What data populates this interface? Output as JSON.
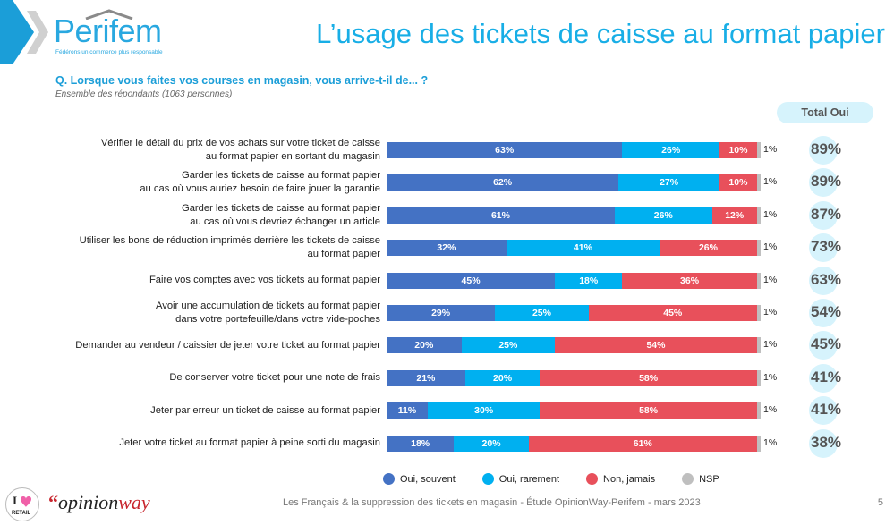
{
  "header": {
    "logo_text": "Perifem",
    "logo_tagline": "Fédérons un commerce plus responsable",
    "title": "L’usage des tickets de caisse au format papier"
  },
  "question": "Q. Lorsque vous faites vos courses en magasin, vous arrive-t-il de... ?",
  "base": "Ensemble des répondants (1063 personnes)",
  "total_header": "Total Oui",
  "colors": {
    "oui_souvent": "#4472c4",
    "oui_rarement": "#00b0f0",
    "non_jamais": "#e8505b",
    "nsp": "#bfbfbf",
    "total_bg": "#d6f3fc",
    "accent": "#18aee6"
  },
  "chart_data": {
    "type": "bar",
    "orientation": "horizontal-stacked-100",
    "title": "L’usage des tickets de caisse au format papier",
    "categories": [
      "Vérifier le détail du prix de vos achats sur votre ticket de caisse au format papier en sortant du magasin",
      "Garder les tickets de caisse au format papier au cas où vous auriez besoin de faire jouer la garantie",
      "Garder les tickets de caisse au format papier au cas où vous devriez échanger un article",
      "Utiliser les bons de réduction imprimés derrière les tickets de caisse au format papier",
      "Faire vos comptes avec vos tickets au format papier",
      "Avoir une accumulation de tickets au format papier dans votre portefeuille/dans votre vide-poches",
      "Demander au vendeur / caissier de jeter votre ticket au format papier",
      "De conserver votre ticket pour une note de frais",
      "Jeter par erreur un ticket de caisse au format papier",
      "Jeter votre ticket au format papier à peine sorti du magasin"
    ],
    "category_lines": [
      [
        "Vérifier le détail du prix de vos achats sur votre ticket de caisse",
        "au format papier en sortant du magasin"
      ],
      [
        "Garder les tickets de caisse au format papier",
        "au cas où vous auriez besoin de faire jouer la garantie"
      ],
      [
        "Garder les tickets de caisse au format papier",
        "au cas où vous devriez échanger un article"
      ],
      [
        "Utiliser les bons de réduction imprimés derrière les tickets de caisse",
        "au format papier"
      ],
      [
        "Faire vos comptes avec vos tickets au format papier"
      ],
      [
        "Avoir une accumulation de tickets au format papier",
        "dans votre portefeuille/dans votre vide-poches"
      ],
      [
        "Demander au vendeur / caissier de jeter votre ticket au format papier"
      ],
      [
        "De conserver votre ticket pour une note de frais"
      ],
      [
        "Jeter par erreur un ticket de caisse au format papier"
      ],
      [
        "Jeter votre ticket au format papier à peine sorti du magasin"
      ]
    ],
    "series": [
      {
        "name": "Oui, souvent",
        "key": "oui_souvent",
        "values": [
          63,
          62,
          61,
          32,
          45,
          29,
          20,
          21,
          11,
          18
        ]
      },
      {
        "name": "Oui, rarement",
        "key": "oui_rarement",
        "values": [
          26,
          27,
          26,
          41,
          18,
          25,
          25,
          20,
          30,
          20
        ]
      },
      {
        "name": "Non, jamais",
        "key": "non_jamais",
        "values": [
          10,
          10,
          12,
          26,
          36,
          45,
          54,
          58,
          58,
          61
        ]
      },
      {
        "name": "NSP",
        "key": "nsp",
        "values": [
          1,
          1,
          1,
          1,
          1,
          1,
          1,
          1,
          1,
          1
        ]
      }
    ],
    "total_oui": [
      89,
      89,
      87,
      73,
      63,
      54,
      45,
      41,
      41,
      38
    ],
    "unit": "%",
    "xlim": [
      0,
      100
    ],
    "legend_position": "bottom"
  },
  "legend": [
    "Oui, souvent",
    "Oui, rarement",
    "Non, jamais",
    "NSP"
  ],
  "footer": {
    "source": "Les Français & la suppression des tickets en magasin - Étude OpinionWay-Perifem - mars 2023",
    "page": "5",
    "brand_opinionway_pre": "opinion",
    "brand_opinionway_post": "way",
    "badge_text": "I ♥ RETAIL"
  }
}
